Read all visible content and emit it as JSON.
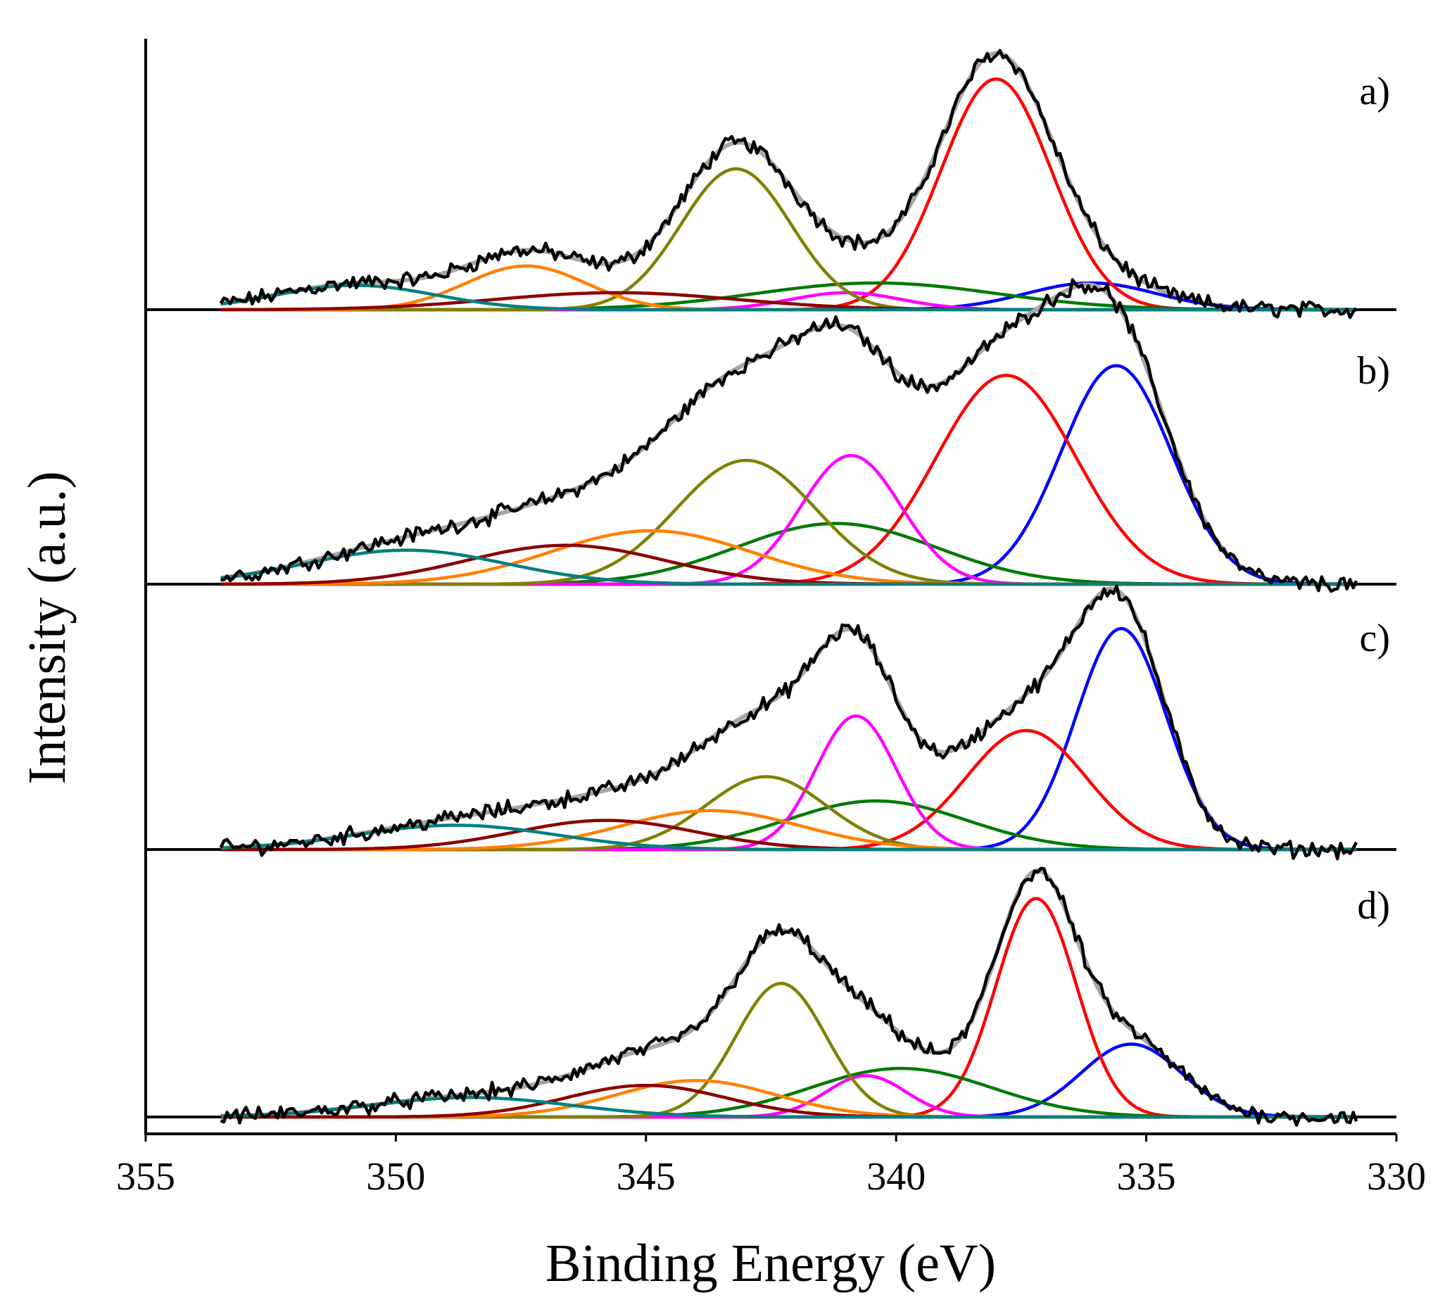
{
  "chart_data": {
    "type": "line",
    "xlabel": "Binding Energy (eV)",
    "ylabel": "Intensity (a.u.)",
    "xlim": [
      355,
      330
    ],
    "x_ticks": [
      "355",
      "350",
      "345",
      "340",
      "335",
      "330"
    ],
    "x_tick_values": [
      355,
      350,
      345,
      340,
      335,
      330
    ],
    "grid": false,
    "legend": "none",
    "component_colors": {
      "raw": "#000000",
      "envelope": "#a6a6a6",
      "c1": "#0000ff",
      "c2": "#ff0000",
      "c3": "#007a00",
      "c4": "#ff00ff",
      "c5": "#808000",
      "c6": "#ff8000",
      "c7": "#8b0000",
      "c8": "#008080"
    },
    "panels": [
      {
        "label": "a)",
        "peaks": [
          {
            "series": "c1",
            "center": 336.1,
            "height": 0.11,
            "width": 1.3
          },
          {
            "series": "c2",
            "center": 338.0,
            "height": 0.95,
            "width": 1.1
          },
          {
            "series": "c3",
            "center": 340.4,
            "height": 0.11,
            "width": 2.4
          },
          {
            "series": "c4",
            "center": 341.0,
            "height": 0.07,
            "width": 1.1
          },
          {
            "series": "c5",
            "center": 343.2,
            "height": 0.58,
            "width": 1.1
          },
          {
            "series": "c6",
            "center": 347.4,
            "height": 0.18,
            "width": 1.2
          },
          {
            "series": "c7",
            "center": 345.6,
            "height": 0.07,
            "width": 2.4
          },
          {
            "series": "c8",
            "center": 350.8,
            "height": 0.1,
            "width": 1.6
          }
        ]
      },
      {
        "label": "b)",
        "peaks": [
          {
            "series": "c1",
            "center": 335.6,
            "height": 0.9,
            "width": 1.1
          },
          {
            "series": "c2",
            "center": 337.8,
            "height": 0.86,
            "width": 1.4
          },
          {
            "series": "c3",
            "center": 341.2,
            "height": 0.25,
            "width": 2.0
          },
          {
            "series": "c4",
            "center": 340.9,
            "height": 0.53,
            "width": 1.0
          },
          {
            "series": "c5",
            "center": 343.0,
            "height": 0.51,
            "width": 1.4
          },
          {
            "series": "c6",
            "center": 344.9,
            "height": 0.22,
            "width": 2.0
          },
          {
            "series": "c7",
            "center": 346.6,
            "height": 0.16,
            "width": 2.0
          },
          {
            "series": "c8",
            "center": 349.8,
            "height": 0.14,
            "width": 2.0
          }
        ]
      },
      {
        "label": "c)",
        "peaks": [
          {
            "series": "c1",
            "center": 335.5,
            "height": 0.91,
            "width": 0.9
          },
          {
            "series": "c2",
            "center": 337.4,
            "height": 0.49,
            "width": 1.2
          },
          {
            "series": "c3",
            "center": 340.4,
            "height": 0.2,
            "width": 1.8
          },
          {
            "series": "c4",
            "center": 340.8,
            "height": 0.55,
            "width": 0.8
          },
          {
            "series": "c5",
            "center": 342.6,
            "height": 0.3,
            "width": 1.2
          },
          {
            "series": "c6",
            "center": 343.7,
            "height": 0.16,
            "width": 1.8
          },
          {
            "series": "c7",
            "center": 345.8,
            "height": 0.12,
            "width": 1.8
          },
          {
            "series": "c8",
            "center": 348.8,
            "height": 0.1,
            "width": 2.0
          }
        ]
      },
      {
        "label": "d)",
        "peaks": [
          {
            "series": "c1",
            "center": 335.3,
            "height": 0.3,
            "width": 1.0
          },
          {
            "series": "c2",
            "center": 337.2,
            "height": 0.9,
            "width": 0.8
          },
          {
            "series": "c3",
            "center": 339.9,
            "height": 0.2,
            "width": 1.8
          },
          {
            "series": "c4",
            "center": 340.6,
            "height": 0.17,
            "width": 0.8
          },
          {
            "series": "c5",
            "center": 342.3,
            "height": 0.55,
            "width": 0.9
          },
          {
            "series": "c6",
            "center": 344.0,
            "height": 0.15,
            "width": 1.6
          },
          {
            "series": "c7",
            "center": 345.0,
            "height": 0.13,
            "width": 1.6
          },
          {
            "series": "c8",
            "center": 348.5,
            "height": 0.08,
            "width": 2.0
          }
        ]
      }
    ]
  }
}
